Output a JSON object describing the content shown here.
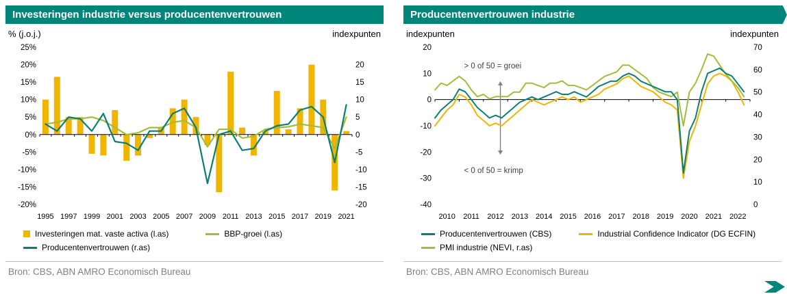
{
  "colors": {
    "teal": "#00857A",
    "teal_line": "#0B7E74",
    "yellow": "#F0B500",
    "green": "#A2BD3A",
    "axis": "#000000",
    "annotation_text": "#404040",
    "arrow": "#808080",
    "source_text": "#808080",
    "rule": "#BFBFBF"
  },
  "panels": {
    "left": {
      "title": "Investeringen industrie versus producentenvertrouwen",
      "axis_left_label": "% (j.o.j.)",
      "axis_right_label": "indexpunten",
      "source": "Bron: CBS, ABN AMRO Economisch Bureau"
    },
    "right": {
      "title": "Producentenvertrouwen industrie",
      "axis_left_label": "indexpunten",
      "axis_right_label": "indexpunten",
      "source": "Bron: CBS, ABN AMRO Economisch Bureau"
    }
  },
  "chart_data": [
    {
      "type": "combo",
      "title": "Investeringen industrie versus producentenvertrouwen",
      "categories": [
        1995,
        1996,
        1997,
        1998,
        1999,
        2000,
        2001,
        2002,
        2003,
        2004,
        2005,
        2006,
        2007,
        2008,
        2009,
        2010,
        2011,
        2012,
        2013,
        2014,
        2015,
        2016,
        2017,
        2018,
        2019,
        2020,
        2021
      ],
      "series": [
        {
          "name": "Investeringen mat. vaste activa (l.as)",
          "type": "bar",
          "axis": "left",
          "color_key": "yellow",
          "values": [
            10,
            16.5,
            5,
            5,
            -5.5,
            -6,
            7,
            -7.5,
            -6,
            -1,
            2,
            7.5,
            10,
            5,
            -3,
            -16.5,
            18,
            2,
            -6,
            1,
            12.5,
            1.5,
            7.5,
            20,
            10,
            -16,
            1
          ]
        },
        {
          "name": "BBP-groei (l.as)",
          "type": "line",
          "axis": "left",
          "color_key": "green",
          "values": [
            3,
            3.5,
            4.5,
            4.5,
            5,
            4,
            2,
            0,
            0.5,
            2,
            2,
            3.5,
            4,
            2,
            -3.5,
            1.5,
            1.5,
            -1,
            -0.5,
            1.5,
            2,
            2.2,
            3,
            2.5,
            2,
            -4,
            5
          ]
        },
        {
          "name": "Producentenvertrouwen (r.as)",
          "type": "line",
          "axis": "right",
          "color_key": "teal_line",
          "values": [
            3,
            1,
            5,
            4.5,
            1,
            6,
            -2,
            -2.5,
            -4.5,
            1,
            1,
            6,
            7.5,
            2,
            -14,
            0,
            1,
            -4.5,
            -4,
            1,
            2.5,
            3,
            7,
            8,
            5,
            -8,
            8.5
          ]
        }
      ],
      "left_axis": {
        "title": "% (j.o.j.)",
        "min": -20,
        "max": 25,
        "ticks": [
          25,
          20,
          15,
          10,
          5,
          0,
          -5,
          -10,
          -15,
          -20
        ],
        "suffix": "%"
      },
      "right_axis": {
        "title": "indexpunten",
        "min": -20,
        "max": 25,
        "ticks": [
          20,
          15,
          10,
          5,
          0,
          -5,
          -10,
          -15,
          -20
        ],
        "suffix": ""
      },
      "x_tick_labels": [
        1995,
        1997,
        1999,
        2001,
        2003,
        2005,
        2007,
        2009,
        2011,
        2013,
        2015,
        2017,
        2019,
        2021
      ],
      "grid": false,
      "legend_position": "bottom"
    },
    {
      "type": "line",
      "title": "Producentenvertrouwen industrie",
      "x_start": 2010,
      "x_step": 0.25,
      "x_end": 2022.75,
      "x_domain": [
        2010,
        2023
      ],
      "series": [
        {
          "name": "Producentenvertrouwen (CBS)",
          "axis": "left",
          "color_key": "teal_line",
          "values": [
            -7,
            -4,
            -2,
            0,
            4,
            3,
            0,
            -3,
            -5,
            -7,
            -6,
            -7,
            -5,
            -3,
            -1,
            0,
            1,
            0,
            1,
            2,
            3,
            2,
            2,
            3,
            2,
            1,
            3,
            5,
            6,
            7,
            7,
            9,
            10,
            9,
            7,
            6,
            5,
            4,
            3,
            3,
            0,
            -28,
            -12,
            -7,
            3,
            10,
            11,
            12,
            10,
            9,
            6,
            3
          ]
        },
        {
          "name": "Industrial Confidence Indicator (DG ECFIN)",
          "axis": "left",
          "color_key": "yellow",
          "values": [
            -10,
            -7,
            -4,
            -2,
            2,
            1,
            -2,
            -6,
            -8,
            -10,
            -9,
            -10,
            -8,
            -6,
            -4,
            -2,
            0,
            -1,
            -2,
            -1,
            0,
            1,
            0,
            1,
            -1,
            0,
            1,
            2,
            4,
            5,
            6,
            8,
            9,
            7,
            5,
            4,
            3,
            1,
            -1,
            -2,
            -4,
            -30,
            -16,
            -10,
            -2,
            6,
            9,
            10,
            9,
            7,
            3,
            -2
          ]
        },
        {
          "name": "PMI industrie (NEVI, r.as)",
          "axis": "right",
          "color_key": "green",
          "values": [
            51,
            54,
            53,
            55,
            57,
            55,
            51,
            48,
            49,
            47,
            48,
            48,
            48,
            50,
            50,
            54,
            54,
            53,
            52,
            54,
            54,
            55,
            53,
            53,
            52,
            51,
            53,
            55,
            57,
            58,
            59,
            62,
            62,
            60,
            58,
            56,
            52,
            50,
            49,
            48,
            50,
            35,
            50,
            54,
            60,
            67,
            66,
            62,
            58,
            55,
            52,
            48
          ]
        }
      ],
      "left_axis": {
        "title": "indexpunten",
        "min": -40,
        "max": 20,
        "ticks": [
          20,
          10,
          0,
          -10,
          -20,
          -30,
          -40
        ],
        "suffix": ""
      },
      "right_axis": {
        "title": "indexpunten",
        "min": 0,
        "max": 70,
        "ticks": [
          70,
          60,
          50,
          40,
          30,
          20,
          10,
          0
        ],
        "suffix": ""
      },
      "x_tick_labels": [
        2010,
        2011,
        2012,
        2013,
        2014,
        2015,
        2016,
        2017,
        2018,
        2019,
        2020,
        2021,
        2022
      ],
      "annotations": {
        "labels": [
          {
            "text": "> 0 of 50 = groei",
            "x": 2011.2,
            "y": 13
          },
          {
            "text": "< 0 of 50 = krimp",
            "x": 2011.2,
            "y": -27
          }
        ],
        "arrow": {
          "x": 2012.7,
          "y_from": 7,
          "y_to": -21
        }
      },
      "grid": false,
      "legend_position": "bottom"
    }
  ]
}
